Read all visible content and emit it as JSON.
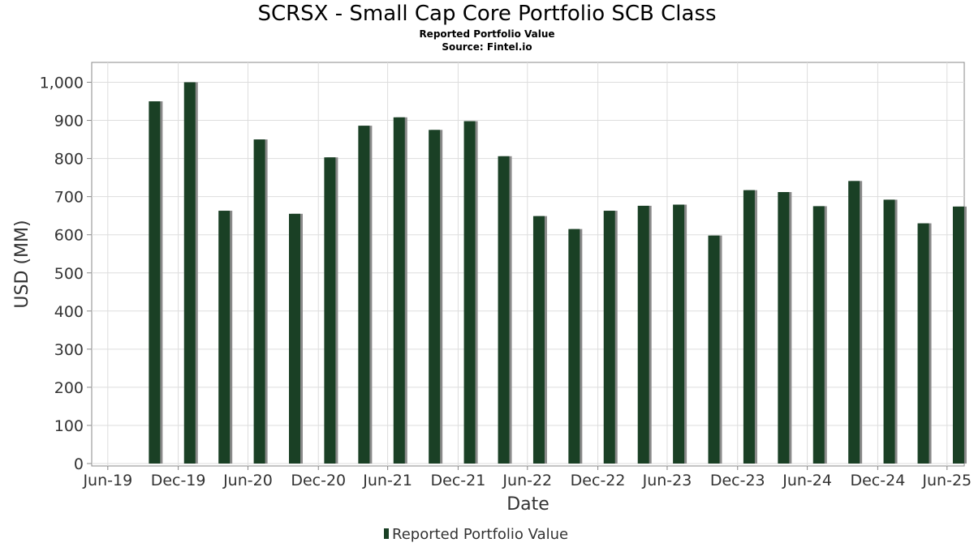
{
  "title": "SCRSX - Small Cap Core Portfolio SCB Class",
  "subtitle": "Reported Portfolio Value",
  "source": "Source: Fintel.io",
  "chart_data": {
    "type": "bar",
    "title": "SCRSX - Small Cap Core Portfolio SCB Class",
    "subtitle": "Reported Portfolio Value",
    "xlabel": "Date",
    "ylabel": "USD (MM)",
    "ylim": [
      0,
      1050
    ],
    "yticks": [
      0,
      100,
      200,
      300,
      400,
      500,
      600,
      700,
      800,
      900,
      1000
    ],
    "ytick_labels": [
      "0",
      "100",
      "200",
      "300",
      "400",
      "500",
      "600",
      "700",
      "800",
      "900",
      "1,000"
    ],
    "xlim": [
      "2019-05-20",
      "2025-08-15"
    ],
    "xticks": [
      "2019-07-01",
      "2020-01-01",
      "2020-07-01",
      "2021-01-01",
      "2021-07-01",
      "2022-01-01",
      "2022-07-01",
      "2023-01-01",
      "2023-07-01",
      "2024-01-01",
      "2024-07-01",
      "2025-01-01",
      "2025-07-01"
    ],
    "xtick_labels": [
      "Jun-19",
      "Dec-19",
      "Jun-20",
      "Dec-20",
      "Jun-21",
      "Dec-21",
      "Jun-22",
      "Dec-22",
      "Jun-23",
      "Dec-23",
      "Jun-24",
      "Dec-24",
      "Jun-25"
    ],
    "grid": true,
    "legend_position": "bottom-center",
    "series": [
      {
        "name": "Reported Portfolio Value",
        "color": "#1a4025",
        "x": [
          "2019-10-31",
          "2020-01-31",
          "2020-04-30",
          "2020-07-31",
          "2020-10-31",
          "2021-01-31",
          "2021-04-30",
          "2021-07-31",
          "2021-10-31",
          "2022-01-31",
          "2022-04-30",
          "2022-07-31",
          "2022-10-31",
          "2023-01-31",
          "2023-04-30",
          "2023-07-31",
          "2023-10-31",
          "2024-01-31",
          "2024-04-30",
          "2024-07-31",
          "2024-10-31",
          "2025-01-31",
          "2025-04-30",
          "2025-07-31"
        ],
        "values": [
          950,
          1000,
          663,
          850,
          655,
          803,
          886,
          908,
          875,
          898,
          806,
          649,
          615,
          663,
          676,
          679,
          598,
          717,
          712,
          675,
          741,
          692,
          630,
          674
        ]
      }
    ]
  }
}
